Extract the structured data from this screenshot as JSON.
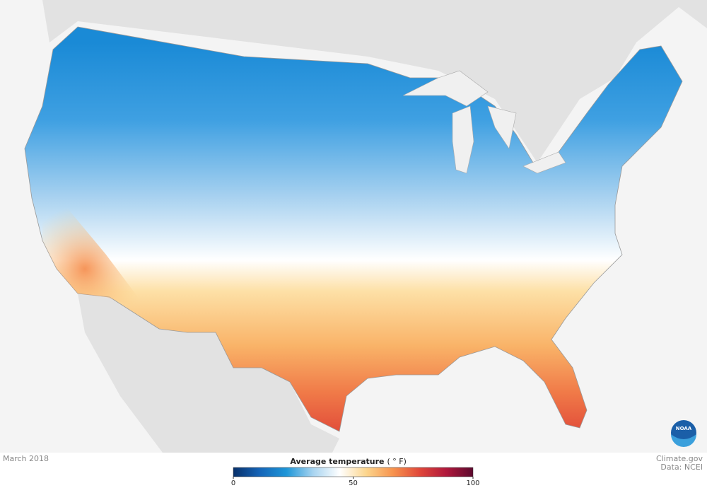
{
  "map": {
    "date": "March 2018",
    "legend": {
      "title": "Average temperature",
      "unit": "( ° F)",
      "lim": [
        0,
        100
      ],
      "ticks": [
        0,
        50,
        100
      ],
      "colors": [
        "#08306b",
        "#1565b8",
        "#1e96d8",
        "#a8d4f0",
        "#ffffff",
        "#fcd58c",
        "#f7934e",
        "#e0473a",
        "#b0183c",
        "#5c0a2e"
      ]
    },
    "credit": "Climate.gov",
    "source": "Data: NCEI",
    "logo": "NOAA"
  }
}
